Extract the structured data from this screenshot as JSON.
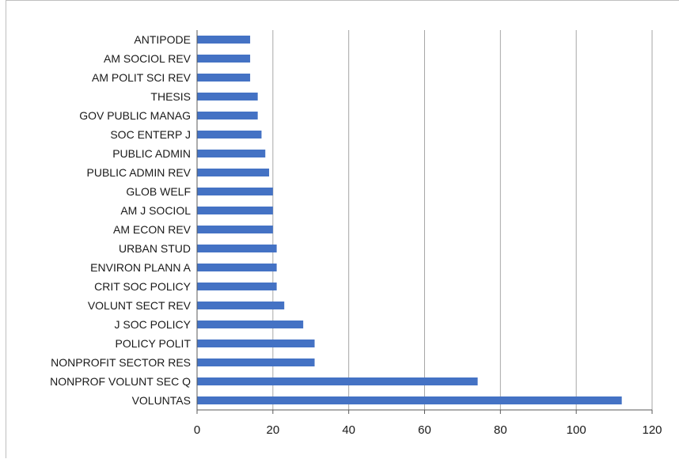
{
  "chart_data": {
    "type": "bar",
    "orientation": "horizontal",
    "categories": [
      "ANTIPODE",
      "AM SOCIOL REV",
      "AM POLIT SCI REV",
      "THESIS",
      "GOV PUBLIC MANAG",
      "SOC ENTERP J",
      "PUBLIC ADMIN",
      "PUBLIC ADMIN REV",
      "GLOB WELF",
      "AM J SOCIOL",
      "AM ECON REV",
      "URBAN STUD",
      "ENVIRON PLANN A",
      "CRIT SOC POLICY",
      "VOLUNT SECT REV",
      "J SOC POLICY",
      "POLICY POLIT",
      "NONPROFIT SECTOR RES",
      "NONPROF VOLUNT SEC Q",
      "VOLUNTAS"
    ],
    "values": [
      14,
      14,
      14,
      16,
      16,
      17,
      18,
      19,
      20,
      20,
      20,
      21,
      21,
      21,
      23,
      28,
      31,
      31,
      74,
      112
    ],
    "xlim": [
      0,
      120
    ],
    "xticks": [
      "0",
      "20",
      "40",
      "60",
      "80",
      "100",
      "120"
    ],
    "grid": "vertical",
    "legend": "none",
    "bar_color": "#4472c4",
    "grid_color": "#a6a6a6",
    "axis_color": "#595959"
  }
}
